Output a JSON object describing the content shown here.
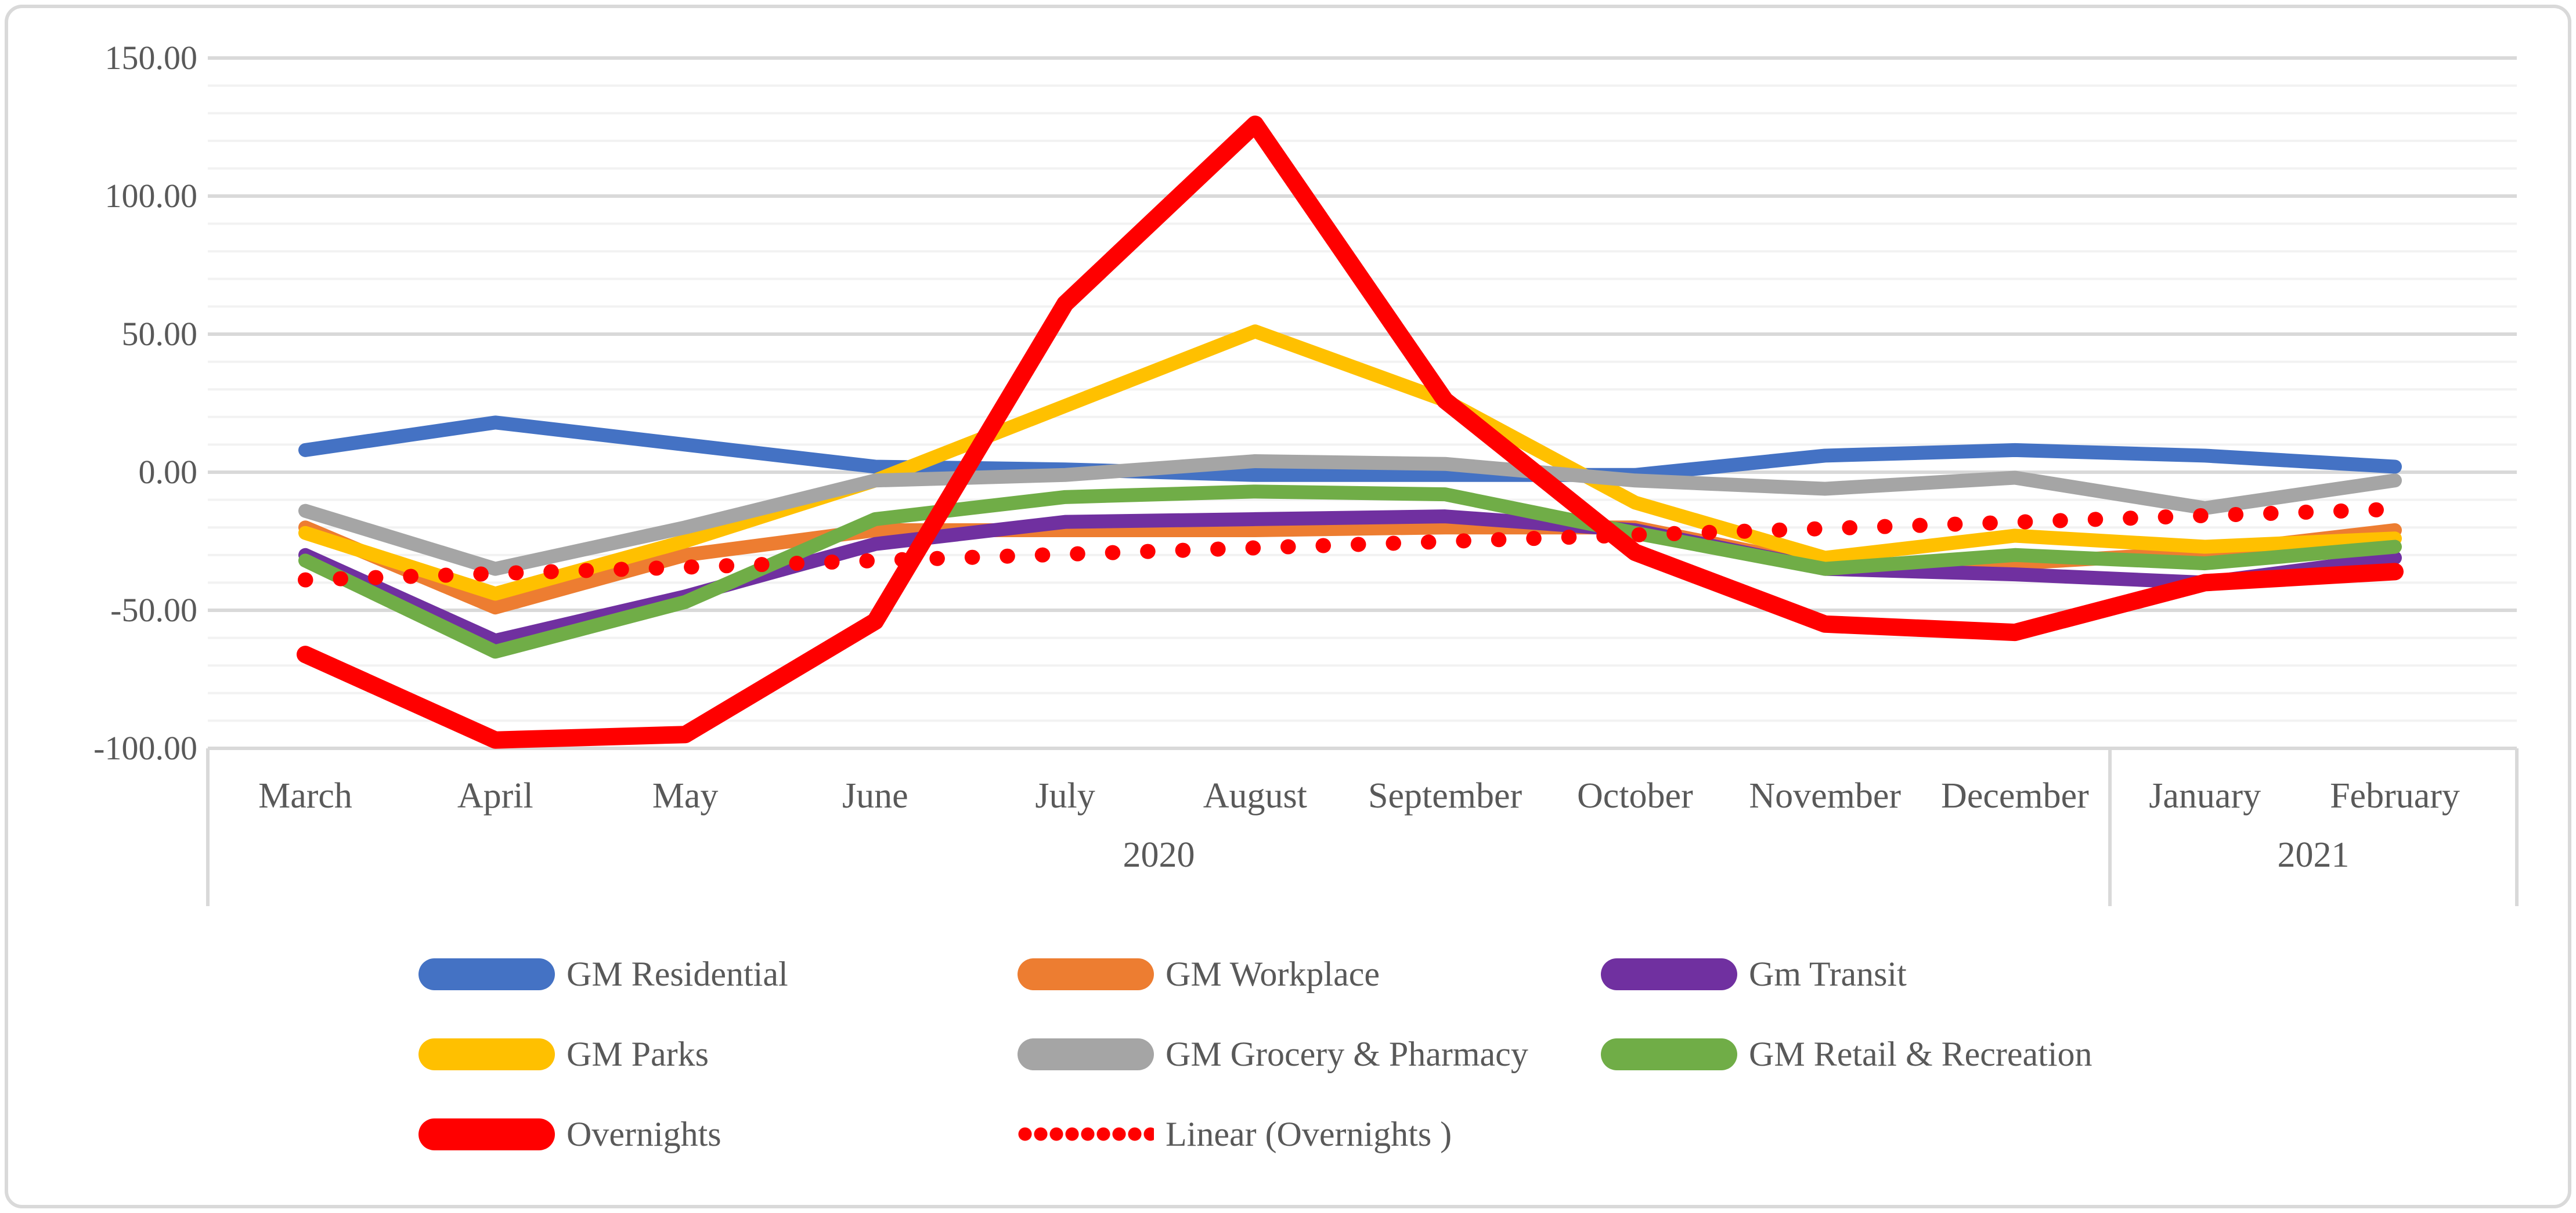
{
  "chart_data": {
    "type": "line",
    "title": "",
    "categories": [
      "March",
      "April",
      "May",
      "June",
      "July",
      "August",
      "September",
      "October",
      "November",
      "December",
      "January",
      "February"
    ],
    "category_year_groups": [
      {
        "label": "2020",
        "from_index": 0,
        "to_index": 9
      },
      {
        "label": "2021",
        "from_index": 10,
        "to_index": 11
      }
    ],
    "y_axis": {
      "min": -100,
      "max": 150,
      "major_step": 50,
      "minor_step": 10,
      "tick_values": [
        150,
        100,
        50,
        0,
        -50,
        -100
      ],
      "tick_labels": [
        "150.00",
        "100.00",
        "50.00",
        "0.00",
        "-50.00",
        "-100.00"
      ]
    },
    "grid": true,
    "legend_position": "bottom",
    "series": [
      {
        "name": "GM Residential",
        "color": "#4472C4",
        "style": "solid",
        "values": [
          8,
          18,
          10,
          2,
          1,
          -1,
          -1,
          -1,
          6,
          8,
          6,
          2
        ]
      },
      {
        "name": "GM Workplace",
        "color": "#ED7D31",
        "style": "solid",
        "values": [
          -20,
          -49,
          -30,
          -21,
          -21,
          -21,
          -20,
          -20,
          -34,
          -33,
          -29,
          -21
        ]
      },
      {
        "name": "Gm Transit",
        "color": "#7030A0",
        "style": "solid",
        "values": [
          -30,
          -61,
          -45,
          -26,
          -18,
          -17,
          -16,
          -21,
          -35,
          -37,
          -40,
          -31
        ]
      },
      {
        "name": "GM Parks",
        "color": "#FFC000",
        "style": "solid",
        "values": [
          -22,
          -44,
          -25,
          -3,
          24,
          51,
          26,
          -11,
          -31,
          -23,
          -27,
          -24
        ]
      },
      {
        "name": "GM Grocery & Pharmacy",
        "color": "#A5A5A5",
        "style": "solid",
        "values": [
          -14,
          -35,
          -20,
          -3,
          -1,
          4,
          3,
          -3,
          -6,
          -2,
          -13,
          -3
        ]
      },
      {
        "name": "GM Retail & Recreation",
        "color": "#70AD47",
        "style": "solid",
        "values": [
          -32,
          -65,
          -47,
          -17,
          -9,
          -7,
          -8,
          -22,
          -35,
          -30,
          -33,
          -27
        ]
      },
      {
        "name": "Overnights",
        "color": "#FF0000",
        "style": "solid",
        "thick": true,
        "values": [
          -66,
          -97,
          -95,
          -54,
          61,
          126,
          26,
          -29,
          -55,
          -58,
          -40,
          -36
        ]
      },
      {
        "name": "Linear (Overnights )",
        "color": "#FF0000",
        "style": "dotted",
        "values": [
          -39.0,
          -36.7,
          -34.4,
          -32.0,
          -29.7,
          -27.4,
          -25.1,
          -22.7,
          -20.4,
          -18.1,
          -15.7,
          -13.4
        ]
      }
    ]
  },
  "legend": {
    "items": [
      {
        "label": "GM Residential",
        "color": "#4472C4",
        "style": "solid"
      },
      {
        "label": "GM Workplace",
        "color": "#ED7D31",
        "style": "solid"
      },
      {
        "label": "Gm Transit",
        "color": "#7030A0",
        "style": "solid"
      },
      {
        "label": "GM Parks",
        "color": "#FFC000",
        "style": "solid"
      },
      {
        "label": "GM Grocery & Pharmacy",
        "color": "#A5A5A5",
        "style": "solid"
      },
      {
        "label": "GM Retail & Recreation",
        "color": "#70AD47",
        "style": "solid"
      },
      {
        "label": "Overnights",
        "color": "#FF0000",
        "style": "solid"
      },
      {
        "label": "Linear (Overnights )",
        "color": "#FF0000",
        "style": "dotted"
      }
    ]
  },
  "colors": {
    "grid_major": "#D9D9D9",
    "grid_minor": "#F2F2F2",
    "axis_text": "#595959",
    "frame_border": "#D9D9D9",
    "background": "#FFFFFF"
  }
}
